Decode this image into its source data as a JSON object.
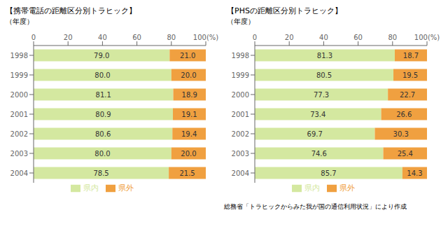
{
  "chart_data": [
    {
      "type": "bar",
      "title": "【携帯電話の距離区分別トラヒック】",
      "ylabel": "（年度）",
      "orientation": "horizontal",
      "stacked": true,
      "data_labels": true,
      "grid": false,
      "legend": "bottom",
      "categories": [
        "1998",
        "1999",
        "2000",
        "2001",
        "2002",
        "2003",
        "2004"
      ],
      "series": [
        {
          "name": "県内",
          "color": "#d4e8a0",
          "values": [
            79.0,
            80.0,
            81.1,
            80.9,
            80.6,
            80.0,
            78.5
          ],
          "value_labels": [
            "79.0",
            "80.0",
            "81.1",
            "80.9",
            "80.6",
            "80.0",
            "78.5"
          ]
        },
        {
          "name": "県外",
          "color": "#f0a040",
          "values": [
            21.0,
            20.0,
            18.9,
            19.1,
            19.4,
            20.0,
            21.5
          ],
          "value_labels": [
            "21.0",
            "20.0",
            "18.9",
            "19.1",
            "19.4",
            "20.0",
            "21.5"
          ]
        }
      ],
      "xlim": [
        0,
        100
      ],
      "xticks": [
        0,
        20,
        40,
        60,
        80,
        {
          "value": 100,
          "label": "100(%)"
        }
      ]
    },
    {
      "type": "bar",
      "title": "【PHSの距離区分別トラヒック】",
      "ylabel": "（年度）",
      "orientation": "horizontal",
      "stacked": true,
      "data_labels": true,
      "grid": false,
      "legend": "bottom",
      "categories": [
        "1998",
        "1999",
        "2000",
        "2001",
        "2002",
        "2003",
        "2004"
      ],
      "series": [
        {
          "name": "県内",
          "color": "#d4e8a0",
          "values": [
            81.3,
            80.5,
            77.3,
            73.4,
            69.7,
            74.6,
            85.7
          ],
          "value_labels": [
            "81.3",
            "80.5",
            "77.3",
            "73.4",
            "69.7",
            "74.6",
            "85.7"
          ]
        },
        {
          "name": "県外",
          "color": "#f0a040",
          "values": [
            18.7,
            19.5,
            22.7,
            26.6,
            30.3,
            25.4,
            14.3
          ],
          "value_labels": [
            "18.7",
            "19.5",
            "22.7",
            "26.6",
            "30.3",
            "25.4",
            "14.3"
          ]
        }
      ],
      "xlim": [
        0,
        100
      ],
      "xticks": [
        0,
        20,
        40,
        60,
        80,
        {
          "value": 100,
          "label": "100(%)"
        }
      ],
      "annotations": [
        "総務省「トラヒックからみた我が国の通信利用状況」により作成"
      ]
    }
  ]
}
